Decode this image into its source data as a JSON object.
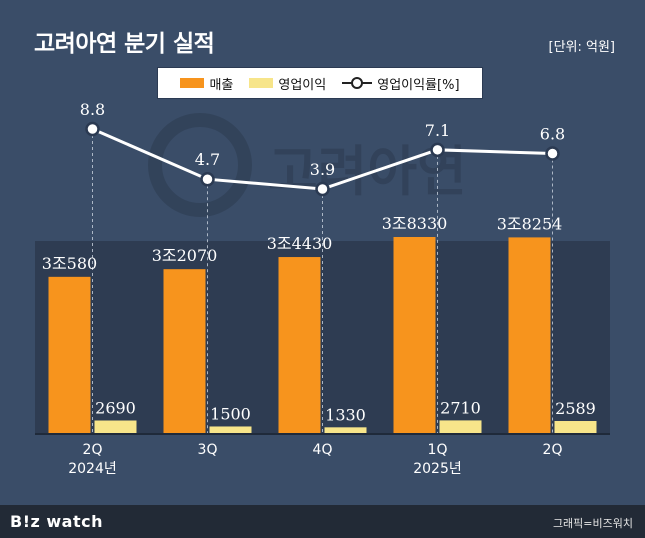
{
  "header": {
    "title": "고려아연 분기 실적",
    "unit": "[단위: 억원]"
  },
  "footer": {
    "brand": "B!z watch",
    "credit": "그래픽=비즈워치"
  },
  "colors": {
    "background": "#3a4d68",
    "plot_area": "#2e3c52",
    "revenue": "#f7941d",
    "operating_profit": "#f7e58a",
    "rate_line": "#ffffff"
  },
  "chart_data": {
    "type": "bar",
    "categories": [
      "2Q",
      "3Q",
      "4Q",
      "1Q",
      "2Q"
    ],
    "year_labels": [
      "2024년",
      "",
      "",
      "2025년",
      ""
    ],
    "series": [
      {
        "name": "매출",
        "type": "bar",
        "values": [
          30580,
          32070,
          34430,
          38330,
          38254
        ],
        "labels": [
          "3조580",
          "3조2070",
          "3조4430",
          "3조8330",
          "3조8254"
        ]
      },
      {
        "name": "영업이익",
        "type": "bar",
        "values": [
          2690,
          1500,
          1330,
          2710,
          2589
        ],
        "labels": [
          "2690",
          "1500",
          "1330",
          "2710",
          "2589"
        ]
      },
      {
        "name": "영업이익률[%]",
        "type": "line",
        "values": [
          8.8,
          4.7,
          3.9,
          7.1,
          6.8
        ],
        "labels": [
          "8.8",
          "4.7",
          "3.9",
          "7.1",
          "6.8"
        ]
      }
    ],
    "legend_position": "top-center",
    "watermark": "고려아연"
  }
}
